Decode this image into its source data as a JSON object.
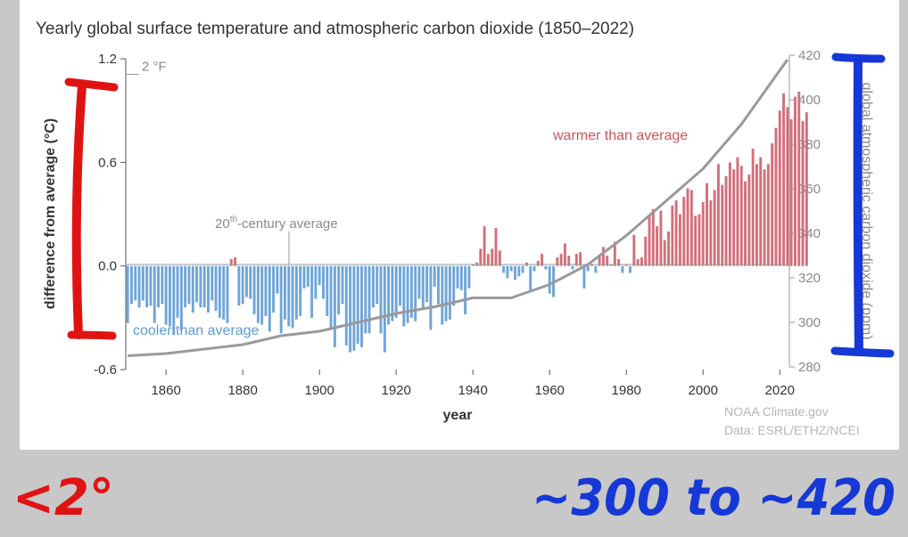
{
  "chart_data": {
    "type": "bar",
    "title": "Yearly global surface temperature and atmospheric carbon dioxide (1850–2022)",
    "xlabel": "year",
    "ylabel": "difference from average (°C)",
    "y2label": "global atmospheric carbon dioxide (ppm)",
    "ylim": [
      -0.6,
      1.2
    ],
    "y2lim": [
      280,
      420
    ],
    "xlim": [
      1850,
      2022
    ],
    "x_ticks": [
      1860,
      1880,
      1900,
      1920,
      1940,
      1960,
      1980,
      2000,
      2020
    ],
    "y_ticks": [
      "1.2",
      "0.6",
      "0.0",
      "-0.6"
    ],
    "y_tick_values": [
      1.2,
      0.6,
      0.0,
      -0.6
    ],
    "y2_ticks": [
      "420",
      "400",
      "380",
      "360",
      "340",
      "320",
      "300",
      "280"
    ],
    "y2_tick_values": [
      420,
      400,
      380,
      360,
      340,
      320,
      300,
      280
    ],
    "f_marker": "2 °F",
    "f_marker_value": 1.11,
    "baseline_label_pre": "20",
    "baseline_label_sup": "th",
    "baseline_label_post": "-century average",
    "annotation_warm": "warmer than average",
    "annotation_cool": "cooler than average",
    "colors": {
      "warm": "#d1707a",
      "cool": "#6fa5d6",
      "co2": "#9a9a9a"
    },
    "series": [
      {
        "name": "temperature anomaly (°C)",
        "start_year": 1850,
        "values": [
          -0.33,
          -0.22,
          -0.2,
          -0.24,
          -0.2,
          -0.24,
          -0.23,
          -0.33,
          -0.24,
          -0.22,
          -0.34,
          -0.35,
          -0.4,
          -0.3,
          -0.37,
          -0.24,
          -0.22,
          -0.27,
          -0.21,
          -0.24,
          -0.24,
          -0.27,
          -0.2,
          -0.26,
          -0.3,
          -0.31,
          -0.33,
          0.04,
          0.05,
          -0.23,
          -0.22,
          -0.18,
          -0.19,
          -0.28,
          -0.33,
          -0.34,
          -0.29,
          -0.38,
          -0.27,
          -0.16,
          -0.39,
          -0.31,
          -0.35,
          -0.36,
          -0.31,
          -0.29,
          -0.13,
          -0.12,
          -0.3,
          -0.19,
          -0.11,
          -0.19,
          -0.29,
          -0.36,
          -0.47,
          -0.28,
          -0.22,
          -0.46,
          -0.5,
          -0.49,
          -0.45,
          -0.47,
          -0.39,
          -0.39,
          -0.24,
          -0.22,
          -0.39,
          -0.5,
          -0.34,
          -0.32,
          -0.3,
          -0.23,
          -0.35,
          -0.33,
          -0.3,
          -0.32,
          -0.19,
          -0.25,
          -0.21,
          -0.37,
          -0.12,
          -0.22,
          -0.34,
          -0.32,
          -0.31,
          -0.23,
          -0.13,
          -0.14,
          -0.28,
          -0.13,
          0.01,
          0.02,
          0.1,
          0.23,
          0.07,
          0.1,
          0.22,
          0.09,
          -0.04,
          -0.07,
          -0.03,
          -0.08,
          -0.06,
          -0.04,
          0.02,
          -0.14,
          -0.03,
          0.03,
          0.07,
          -0.02,
          -0.16,
          -0.18,
          0.05,
          0.07,
          0.13,
          0.06,
          -0.02,
          0.07,
          0.08,
          -0.13,
          -0.03,
          0.01,
          -0.04,
          0.06,
          0.11,
          0.06,
          0.01,
          0.14,
          0.04,
          -0.04,
          0.01,
          -0.04,
          0.18,
          0.04,
          0.05,
          0.17,
          0.29,
          0.33,
          0.23,
          0.32,
          0.15,
          0.2,
          0.35,
          0.38,
          0.3,
          0.4,
          0.45,
          0.44,
          0.29,
          0.3,
          0.37,
          0.48,
          0.38,
          0.44,
          0.59,
          0.47,
          0.52,
          0.6,
          0.56,
          0.63,
          0.58,
          0.49,
          0.53,
          0.68,
          0.59,
          0.63,
          0.56,
          0.59,
          0.71,
          0.8,
          0.9,
          1.0,
          0.92,
          0.85,
          0.98,
          1.01,
          0.84,
          0.89
        ]
      },
      {
        "name": "atmospheric CO2 (ppm)",
        "x": [
          1850,
          1860,
          1870,
          1880,
          1890,
          1900,
          1910,
          1920,
          1930,
          1940,
          1950,
          1960,
          1970,
          1980,
          1990,
          2000,
          2010,
          2022
        ],
        "values": [
          285,
          286,
          288,
          290,
          294,
          296,
          300,
          304,
          307,
          311,
          311,
          317,
          326,
          339,
          354,
          369,
          389,
          418
        ]
      }
    ]
  },
  "credits": {
    "line1": "NOAA Climate.gov",
    "line2": "Data: ESRL/ETHZ/NCEI"
  },
  "handwriting": {
    "left_note": "<2°",
    "right_note": "~300 to ~420"
  }
}
